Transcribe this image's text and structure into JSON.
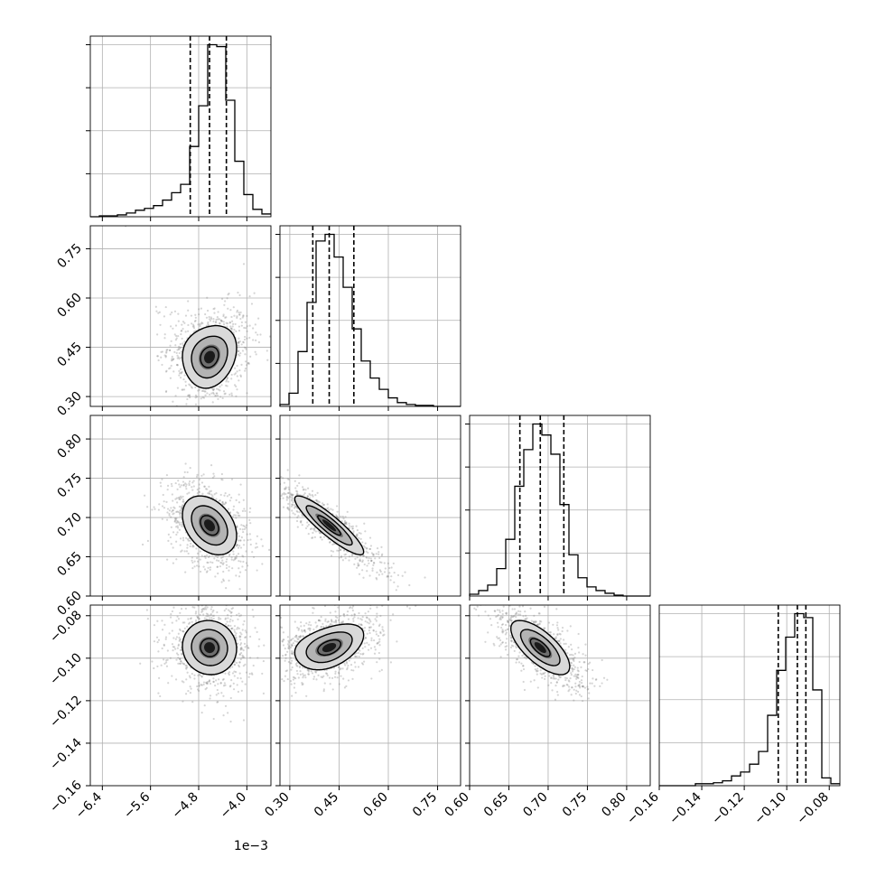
{
  "chart_data": {
    "type": "corner",
    "grid": true,
    "parameters": [
      {
        "range": [
          -6.6,
          -3.6
        ],
        "ticks": [
          -6.4,
          -5.6,
          -4.8,
          -4.0
        ],
        "tick_labels": [
          "−6.4",
          "−5.6",
          "−4.8",
          "−4.0"
        ],
        "offset_label": "1e−3",
        "mean": -4.62,
        "sd": 0.3,
        "skew_tail": "left",
        "quantiles": [
          -4.94,
          -4.62,
          -4.34
        ],
        "histogram": {
          "edges": [
            -6.6,
            -6.45,
            -6.3,
            -6.15,
            -6.0,
            -5.85,
            -5.7,
            -5.55,
            -5.4,
            -5.25,
            -5.1,
            -4.95,
            -4.8,
            -4.65,
            -4.5,
            -4.35,
            -4.2,
            -4.05,
            -3.9,
            -3.75,
            -3.6
          ],
          "counts": [
            0,
            1,
            1,
            2,
            4,
            7,
            9,
            12,
            18,
            26,
            35,
            76,
            120,
            186,
            184,
            126,
            60,
            24,
            8,
            3
          ]
        }
      },
      {
        "range": [
          0.27,
          0.82
        ],
        "ticks": [
          0.3,
          0.45,
          0.6,
          0.75
        ],
        "tick_labels": [
          "0.30",
          "0.45",
          "0.60",
          "0.75"
        ],
        "mean": 0.42,
        "sd": 0.07,
        "skew_tail": "right",
        "quantiles": [
          0.37,
          0.42,
          0.495
        ],
        "histogram": {
          "edges": [
            0.27,
            0.2975,
            0.325,
            0.3525,
            0.38,
            0.4075,
            0.435,
            0.4625,
            0.49,
            0.5175,
            0.545,
            0.5725,
            0.6,
            0.6275,
            0.655,
            0.6825,
            0.71,
            0.7375,
            0.765,
            0.7925,
            0.82
          ],
          "counts": [
            2,
            14,
            58,
            110,
            175,
            182,
            158,
            126,
            82,
            48,
            30,
            18,
            9,
            4,
            2,
            1,
            1,
            0,
            0,
            0
          ]
        }
      },
      {
        "range": [
          0.6,
          0.83
        ],
        "ticks": [
          0.6,
          0.65,
          0.7,
          0.75,
          0.8
        ],
        "tick_labels": [
          "0.60",
          "0.65",
          "0.70",
          "0.75",
          "0.80"
        ],
        "mean": 0.69,
        "sd": 0.025,
        "skew_tail": "none",
        "quantiles": [
          0.664,
          0.69,
          0.72
        ],
        "histogram": {
          "edges": [
            0.6,
            0.6115,
            0.623,
            0.6345,
            0.646,
            0.6575,
            0.669,
            0.6805,
            0.692,
            0.7035,
            0.715,
            0.7265,
            0.738,
            0.7495,
            0.761,
            0.7725,
            0.784,
            0.7955,
            0.807,
            0.8185,
            0.83
          ],
          "counts": [
            2,
            6,
            12,
            30,
            62,
            120,
            160,
            188,
            176,
            155,
            100,
            45,
            20,
            10,
            6,
            3,
            1,
            0,
            0,
            0
          ]
        }
      },
      {
        "range": [
          -0.16,
          -0.075
        ],
        "ticks": [
          -0.16,
          -0.14,
          -0.12,
          -0.1,
          -0.08
        ],
        "tick_labels": [
          "−0.16",
          "−0.14",
          "−0.12",
          "−0.10",
          "−0.08"
        ],
        "mean": -0.095,
        "sd": 0.0085,
        "skew_tail": "left",
        "quantiles": [
          -0.104,
          -0.095,
          -0.091
        ],
        "histogram": {
          "edges": [
            -0.16,
            -0.15575,
            -0.1515,
            -0.14725,
            -0.143,
            -0.13875,
            -0.1345,
            -0.13025,
            -0.126,
            -0.12175,
            -0.1175,
            -0.11325,
            -0.109,
            -0.10475,
            -0.1005,
            -0.09625,
            -0.092,
            -0.08775,
            -0.0835,
            -0.07925,
            -0.075
          ],
          "counts": [
            0,
            0,
            0,
            0,
            2,
            2,
            3,
            5,
            10,
            14,
            22,
            35,
            72,
            118,
            152,
            176,
            172,
            98,
            8,
            2
          ]
        }
      }
    ],
    "pairs": [
      {
        "row": 1,
        "col": 0,
        "rho": 0.45,
        "shape": "banana"
      },
      {
        "row": 2,
        "col": 0,
        "rho": -0.35,
        "shape": "ellipse"
      },
      {
        "row": 2,
        "col": 1,
        "rho": -0.9,
        "shape": "ellipse"
      },
      {
        "row": 3,
        "col": 0,
        "rho": -0.05,
        "shape": "ellipse"
      },
      {
        "row": 3,
        "col": 1,
        "rho": 0.65,
        "shape": "banana"
      },
      {
        "row": 3,
        "col": 2,
        "rho": -0.7,
        "shape": "ellipse"
      }
    ],
    "contour_levels": [
      0.5,
      1.0,
      1.5,
      2.0
    ]
  }
}
